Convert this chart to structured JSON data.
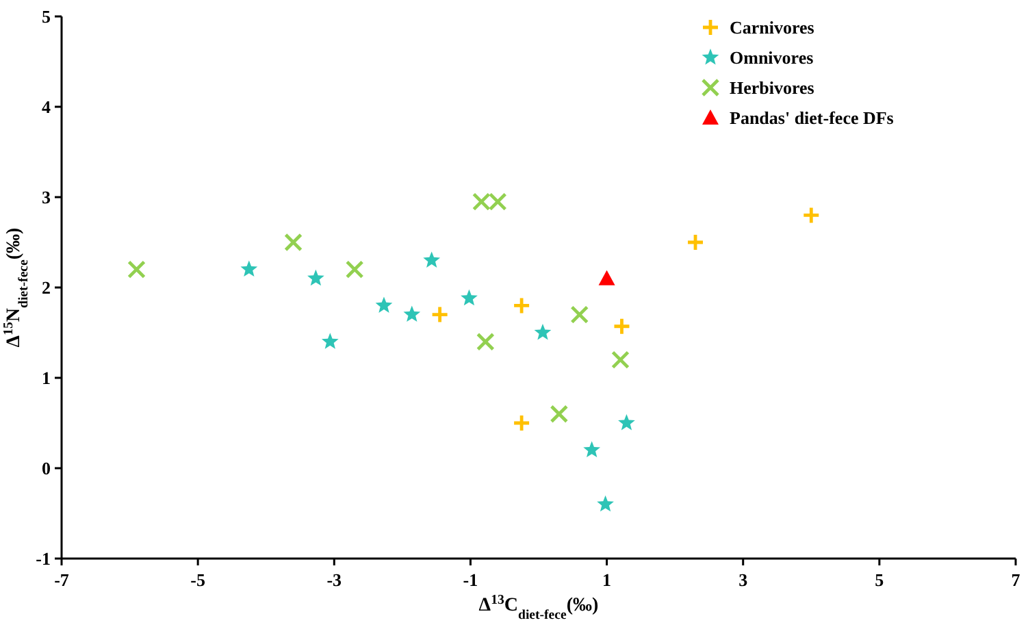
{
  "chart_data": {
    "type": "scatter",
    "xlabel": "Δ$^{13}$C$_{diet-fece}$(‰)",
    "ylabel": "Δ$^{15}$N$_{diet-fece}$(‰)",
    "xlim": [
      -7,
      7
    ],
    "ylim": [
      -1,
      5
    ],
    "xticks": [
      -7,
      -5,
      -3,
      -1,
      1,
      3,
      5,
      7
    ],
    "yticks": [
      -1,
      0,
      1,
      2,
      3,
      4,
      5
    ],
    "grid": false,
    "legend": "top right",
    "series": [
      {
        "name": "Carnivores",
        "color": "#ffc000",
        "marker": "cross",
        "x": [
          -1.45,
          -0.25,
          -0.25,
          1.22,
          2.3,
          4.0
        ],
        "values": [
          1.7,
          1.8,
          0.5,
          1.57,
          2.5,
          2.8
        ]
      },
      {
        "name": "Omnivores",
        "color": "#2ec4b6",
        "marker": "star",
        "x": [
          -4.25,
          -3.27,
          -3.06,
          -2.27,
          -1.86,
          -1.57,
          -1.02,
          0.06,
          0.78,
          1.29,
          0.98
        ],
        "values": [
          2.2,
          2.1,
          1.4,
          1.8,
          1.7,
          2.3,
          1.88,
          1.5,
          0.2,
          0.5,
          -0.4
        ]
      },
      {
        "name": "Herbivores",
        "color": "#92d050",
        "marker": "x",
        "x": [
          -5.9,
          -3.6,
          -2.7,
          -0.84,
          -0.6,
          -0.78,
          0.6,
          1.2,
          0.3
        ],
        "values": [
          2.2,
          2.5,
          2.2,
          2.95,
          2.95,
          1.4,
          1.7,
          1.2,
          0.6
        ]
      },
      {
        "name": "Pandas' diet-fece DFs",
        "color": "#ff0000",
        "marker": "triangle",
        "x": [
          1.0
        ],
        "values": [
          2.1
        ]
      }
    ]
  }
}
